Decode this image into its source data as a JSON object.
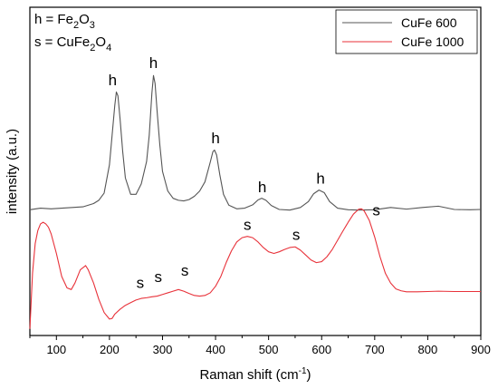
{
  "chart_data": {
    "type": "line",
    "xlabel": "Raman shift (cm",
    "xlabel_sup": "-1",
    "xlabel_end": ")",
    "ylabel": "intensity (a.u.)",
    "xlim": [
      50,
      900
    ],
    "ylim": [
      0,
      1
    ],
    "xticks": [
      100,
      200,
      300,
      400,
      500,
      600,
      700,
      800,
      900
    ],
    "y_tick_labels": false,
    "grid": false,
    "legend_position": "top-right",
    "key": [
      {
        "prefix": "h = Fe",
        "sub1": "2",
        "mid": "O",
        "sub2": "3"
      },
      {
        "prefix": "s = CuFe",
        "sub1": "2",
        "mid": "O",
        "sub2": "4"
      }
    ],
    "series": [
      {
        "name": "CuFe 600",
        "color": "#555555",
        "x": [
          50,
          70,
          90,
          110,
          130,
          150,
          170,
          180,
          190,
          200,
          205,
          210,
          213,
          216,
          220,
          225,
          230,
          240,
          250,
          260,
          270,
          275,
          280,
          283,
          286,
          290,
          295,
          300,
          310,
          320,
          330,
          340,
          350,
          360,
          370,
          380,
          390,
          395,
          398,
          402,
          408,
          415,
          425,
          440,
          455,
          470,
          480,
          487,
          495,
          505,
          520,
          540,
          560,
          575,
          585,
          595,
          605,
          615,
          630,
          650,
          670,
          700,
          730,
          760,
          790,
          820,
          850,
          880,
          900
        ],
        "y": [
          0.383,
          0.388,
          0.386,
          0.388,
          0.39,
          0.392,
          0.402,
          0.412,
          0.434,
          0.52,
          0.61,
          0.7,
          0.742,
          0.73,
          0.66,
          0.56,
          0.48,
          0.43,
          0.43,
          0.462,
          0.53,
          0.61,
          0.738,
          0.792,
          0.768,
          0.68,
          0.58,
          0.5,
          0.44,
          0.418,
          0.412,
          0.41,
          0.414,
          0.424,
          0.44,
          0.468,
          0.528,
          0.56,
          0.565,
          0.55,
          0.49,
          0.43,
          0.397,
          0.386,
          0.388,
          0.398,
          0.413,
          0.418,
          0.412,
          0.396,
          0.384,
          0.382,
          0.39,
          0.408,
          0.432,
          0.443,
          0.435,
          0.408,
          0.388,
          0.383,
          0.382,
          0.383,
          0.39,
          0.385,
          0.39,
          0.394,
          0.384,
          0.383,
          0.384
        ]
      },
      {
        "name": "CuFe 1000",
        "color": "#e8323a",
        "x": [
          50,
          55,
          60,
          65,
          70,
          75,
          80,
          85,
          90,
          100,
          110,
          120,
          128,
          135,
          145,
          155,
          160,
          170,
          180,
          190,
          200,
          205,
          210,
          220,
          230,
          240,
          250,
          260,
          270,
          280,
          290,
          300,
          310,
          320,
          330,
          340,
          350,
          360,
          370,
          380,
          390,
          400,
          410,
          420,
          430,
          440,
          450,
          460,
          470,
          480,
          490,
          500,
          510,
          520,
          530,
          540,
          550,
          560,
          570,
          580,
          590,
          600,
          610,
          620,
          630,
          640,
          650,
          660,
          670,
          675,
          680,
          690,
          700,
          710,
          720,
          730,
          740,
          750,
          760,
          780,
          800,
          820,
          850,
          880,
          900
        ],
        "y": [
          0.02,
          0.19,
          0.28,
          0.32,
          0.34,
          0.345,
          0.34,
          0.33,
          0.31,
          0.25,
          0.18,
          0.145,
          0.14,
          0.16,
          0.2,
          0.213,
          0.2,
          0.16,
          0.11,
          0.07,
          0.05,
          0.052,
          0.065,
          0.08,
          0.092,
          0.1,
          0.108,
          0.113,
          0.115,
          0.118,
          0.12,
          0.125,
          0.13,
          0.135,
          0.14,
          0.135,
          0.128,
          0.122,
          0.12,
          0.122,
          0.13,
          0.15,
          0.18,
          0.222,
          0.258,
          0.285,
          0.298,
          0.302,
          0.298,
          0.285,
          0.268,
          0.255,
          0.25,
          0.255,
          0.262,
          0.268,
          0.27,
          0.26,
          0.245,
          0.23,
          0.222,
          0.225,
          0.24,
          0.262,
          0.29,
          0.318,
          0.345,
          0.37,
          0.385,
          0.386,
          0.38,
          0.35,
          0.3,
          0.24,
          0.19,
          0.16,
          0.142,
          0.136,
          0.133,
          0.133,
          0.134,
          0.135,
          0.134,
          0.134,
          0.134
        ]
      }
    ],
    "annotations": [
      {
        "text": "h",
        "x": 206,
        "y": 0.762
      },
      {
        "text": "h",
        "x": 283,
        "y": 0.815
      },
      {
        "text": "h",
        "x": 400,
        "y": 0.585
      },
      {
        "text": "h",
        "x": 488,
        "y": 0.437
      },
      {
        "text": "h",
        "x": 598,
        "y": 0.463
      },
      {
        "text": "s",
        "x": 460,
        "y": 0.322
      },
      {
        "text": "s",
        "x": 552,
        "y": 0.292
      },
      {
        "text": "s",
        "x": 703,
        "y": 0.366
      },
      {
        "text": "s",
        "x": 258,
        "y": 0.145
      },
      {
        "text": "s",
        "x": 292,
        "y": 0.163
      },
      {
        "text": "s",
        "x": 342,
        "y": 0.183
      }
    ]
  }
}
